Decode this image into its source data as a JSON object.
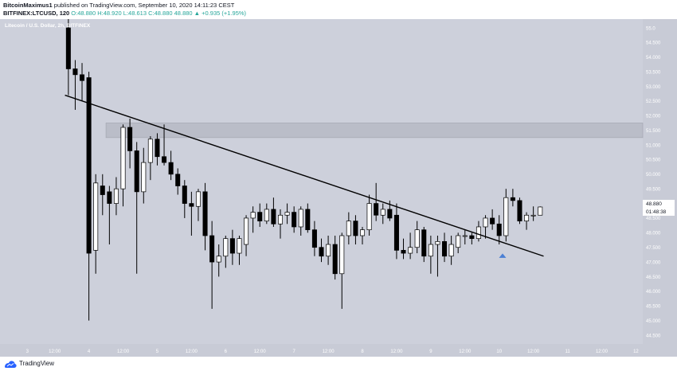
{
  "publish": {
    "author": "BitcoinMaximus1",
    "text": "published on TradingView.com, September 10, 2020 14:11:23 CEST"
  },
  "symbol": {
    "name": "BITFINEX:LTCUSD, 120",
    "open": "O:48.880",
    "high": "H:48.920",
    "low": "L:48.613",
    "close": "C:48.880",
    "change": "48.880 ▲ +0.935 (+1.95%)"
  },
  "chart_title": "Litecoin / U.S. Dollar, 2h, BITFINEX",
  "price_badge": "48.880",
  "timer_badge": "01:48:38",
  "footer": {
    "brand": "TradingView"
  },
  "colors": {
    "background": "#cdd0db",
    "up": "#ffffff",
    "down": "#000000",
    "badge": "#ffffff",
    "arrow": "#4a7fd4",
    "resistance_zone": "#b8bbc6"
  },
  "chart_data": {
    "type": "candlestick",
    "ylim": [
      44.2,
      55.3
    ],
    "xlim": [
      0,
      94
    ],
    "y_ticks": [
      44.5,
      45.0,
      45.5,
      46.0,
      46.5,
      47.0,
      47.5,
      48.0,
      48.5,
      49.0,
      49.5,
      50.0,
      50.5,
      51.0,
      51.5,
      52.0,
      52.5,
      53.0,
      53.5,
      54.0,
      54.5,
      55.0
    ],
    "y_tick_labels": [
      "44.500",
      "45.000",
      "45.500",
      "46.000",
      "46.500",
      "47.000",
      "47.500",
      "48.000",
      "48.500",
      "49.000",
      "49.500",
      "50.000",
      "50.500",
      "51.000",
      "51.500",
      "52.000",
      "52.500",
      "53.000",
      "53.500",
      "54.000",
      "54.500",
      "55.0"
    ],
    "x_ticks": [
      {
        "label": "3",
        "x": 4
      },
      {
        "label": "12:00",
        "x": 8
      },
      {
        "label": "4",
        "x": 13
      },
      {
        "label": "12:00",
        "x": 18
      },
      {
        "label": "5",
        "x": 23
      },
      {
        "label": "12:00",
        "x": 28
      },
      {
        "label": "6",
        "x": 33
      },
      {
        "label": "12:00",
        "x": 38
      },
      {
        "label": "7",
        "x": 43
      },
      {
        "label": "12:00",
        "x": 48
      },
      {
        "label": "8",
        "x": 53
      },
      {
        "label": "12:00",
        "x": 58
      },
      {
        "label": "9",
        "x": 63
      },
      {
        "label": "12:00",
        "x": 68
      },
      {
        "label": "10",
        "x": 73
      },
      {
        "label": "12:00",
        "x": 78
      },
      {
        "label": "11",
        "x": 83
      },
      {
        "label": "12:00",
        "x": 88
      },
      {
        "label": "12",
        "x": 93
      }
    ],
    "candles": [
      {
        "x": 10,
        "o": 55.0,
        "h": 55.3,
        "l": 52.7,
        "c": 53.6
      },
      {
        "x": 11,
        "o": 53.6,
        "h": 53.9,
        "l": 52.2,
        "c": 53.4
      },
      {
        "x": 12,
        "o": 53.4,
        "h": 53.8,
        "l": 52.5,
        "c": 53.2
      },
      {
        "x": 13,
        "o": 53.3,
        "h": 53.5,
        "l": 45.0,
        "c": 47.3
      },
      {
        "x": 14,
        "o": 47.4,
        "h": 50.0,
        "l": 46.6,
        "c": 49.7
      },
      {
        "x": 15,
        "o": 49.6,
        "h": 50.0,
        "l": 48.6,
        "c": 49.3
      },
      {
        "x": 16,
        "o": 49.4,
        "h": 49.6,
        "l": 47.6,
        "c": 49.0
      },
      {
        "x": 17,
        "o": 49.0,
        "h": 49.9,
        "l": 48.6,
        "c": 49.5
      },
      {
        "x": 18,
        "o": 49.5,
        "h": 51.7,
        "l": 48.9,
        "c": 51.6
      },
      {
        "x": 19,
        "o": 51.6,
        "h": 51.9,
        "l": 50.2,
        "c": 50.8
      },
      {
        "x": 20,
        "o": 50.8,
        "h": 51.1,
        "l": 46.6,
        "c": 49.4
      },
      {
        "x": 21,
        "o": 49.4,
        "h": 50.9,
        "l": 49.0,
        "c": 50.4
      },
      {
        "x": 22,
        "o": 50.4,
        "h": 51.3,
        "l": 49.8,
        "c": 51.2
      },
      {
        "x": 23,
        "o": 51.2,
        "h": 51.4,
        "l": 50.3,
        "c": 50.6
      },
      {
        "x": 24,
        "o": 50.6,
        "h": 51.7,
        "l": 50.3,
        "c": 50.4
      },
      {
        "x": 25,
        "o": 50.4,
        "h": 50.8,
        "l": 49.8,
        "c": 50.0
      },
      {
        "x": 26,
        "o": 50.0,
        "h": 50.2,
        "l": 49.3,
        "c": 49.6
      },
      {
        "x": 27,
        "o": 49.6,
        "h": 49.8,
        "l": 48.5,
        "c": 49.0
      },
      {
        "x": 28,
        "o": 49.0,
        "h": 49.4,
        "l": 47.9,
        "c": 48.9
      },
      {
        "x": 29,
        "o": 48.9,
        "h": 49.5,
        "l": 48.4,
        "c": 49.4
      },
      {
        "x": 30,
        "o": 49.4,
        "h": 49.7,
        "l": 47.4,
        "c": 47.9
      },
      {
        "x": 31,
        "o": 47.9,
        "h": 48.4,
        "l": 45.4,
        "c": 47.0
      },
      {
        "x": 32,
        "o": 47.0,
        "h": 47.6,
        "l": 46.5,
        "c": 47.2
      },
      {
        "x": 33,
        "o": 47.2,
        "h": 47.9,
        "l": 46.8,
        "c": 47.8
      },
      {
        "x": 34,
        "o": 47.8,
        "h": 48.1,
        "l": 46.9,
        "c": 47.3
      },
      {
        "x": 35,
        "o": 47.3,
        "h": 47.9,
        "l": 46.9,
        "c": 47.8
      },
      {
        "x": 36,
        "o": 47.6,
        "h": 48.6,
        "l": 47.2,
        "c": 48.5
      },
      {
        "x": 37,
        "o": 48.5,
        "h": 48.9,
        "l": 48.0,
        "c": 48.7
      },
      {
        "x": 38,
        "o": 48.7,
        "h": 49.0,
        "l": 48.2,
        "c": 48.4
      },
      {
        "x": 39,
        "o": 48.4,
        "h": 49.0,
        "l": 48.3,
        "c": 48.8
      },
      {
        "x": 40,
        "o": 48.8,
        "h": 49.2,
        "l": 48.2,
        "c": 48.3
      },
      {
        "x": 41,
        "o": 48.3,
        "h": 48.8,
        "l": 47.8,
        "c": 48.6
      },
      {
        "x": 42,
        "o": 48.6,
        "h": 49.0,
        "l": 48.3,
        "c": 48.7
      },
      {
        "x": 43,
        "o": 48.7,
        "h": 48.9,
        "l": 48.0,
        "c": 48.2
      },
      {
        "x": 44,
        "o": 48.2,
        "h": 48.9,
        "l": 47.9,
        "c": 48.8
      },
      {
        "x": 45,
        "o": 48.8,
        "h": 49.0,
        "l": 48.0,
        "c": 48.1
      },
      {
        "x": 46,
        "o": 48.1,
        "h": 48.4,
        "l": 47.2,
        "c": 47.5
      },
      {
        "x": 47,
        "o": 47.5,
        "h": 47.8,
        "l": 47.0,
        "c": 47.2
      },
      {
        "x": 48,
        "o": 47.2,
        "h": 47.9,
        "l": 46.9,
        "c": 47.6
      },
      {
        "x": 49,
        "o": 47.6,
        "h": 47.9,
        "l": 46.4,
        "c": 46.6
      },
      {
        "x": 50,
        "o": 46.6,
        "h": 48.0,
        "l": 45.4,
        "c": 47.9
      },
      {
        "x": 51,
        "o": 47.9,
        "h": 48.7,
        "l": 47.6,
        "c": 48.4
      },
      {
        "x": 52,
        "o": 48.4,
        "h": 48.6,
        "l": 47.6,
        "c": 47.9
      },
      {
        "x": 53,
        "o": 47.9,
        "h": 48.2,
        "l": 47.6,
        "c": 48.1
      },
      {
        "x": 54,
        "o": 48.1,
        "h": 49.3,
        "l": 47.9,
        "c": 49.0
      },
      {
        "x": 55,
        "o": 49.0,
        "h": 49.7,
        "l": 48.4,
        "c": 48.6
      },
      {
        "x": 56,
        "o": 48.6,
        "h": 49.0,
        "l": 48.3,
        "c": 48.8
      },
      {
        "x": 57,
        "o": 48.8,
        "h": 49.1,
        "l": 48.4,
        "c": 48.5
      },
      {
        "x": 58,
        "o": 48.6,
        "h": 49.0,
        "l": 47.1,
        "c": 47.4
      },
      {
        "x": 59,
        "o": 47.4,
        "h": 47.8,
        "l": 47.1,
        "c": 47.3
      },
      {
        "x": 60,
        "o": 47.3,
        "h": 48.0,
        "l": 47.1,
        "c": 47.5
      },
      {
        "x": 61,
        "o": 47.5,
        "h": 48.4,
        "l": 47.3,
        "c": 48.1
      },
      {
        "x": 62,
        "o": 48.1,
        "h": 48.2,
        "l": 47.0,
        "c": 47.2
      },
      {
        "x": 63,
        "o": 47.2,
        "h": 47.9,
        "l": 46.6,
        "c": 47.6
      },
      {
        "x": 64,
        "o": 47.6,
        "h": 47.9,
        "l": 46.5,
        "c": 47.7
      },
      {
        "x": 65,
        "o": 47.7,
        "h": 48.0,
        "l": 47.0,
        "c": 47.2
      },
      {
        "x": 66,
        "o": 47.2,
        "h": 47.9,
        "l": 46.9,
        "c": 47.6
      },
      {
        "x": 67,
        "o": 47.5,
        "h": 48.0,
        "l": 47.3,
        "c": 47.9
      },
      {
        "x": 68,
        "o": 47.9,
        "h": 48.1,
        "l": 47.6,
        "c": 47.9
      },
      {
        "x": 69,
        "o": 47.9,
        "h": 48.0,
        "l": 47.6,
        "c": 47.8
      },
      {
        "x": 70,
        "o": 47.8,
        "h": 48.4,
        "l": 47.7,
        "c": 48.2
      },
      {
        "x": 71,
        "o": 48.2,
        "h": 48.6,
        "l": 47.8,
        "c": 48.5
      },
      {
        "x": 72,
        "o": 48.5,
        "h": 48.8,
        "l": 48.1,
        "c": 48.3
      },
      {
        "x": 73,
        "o": 48.3,
        "h": 48.6,
        "l": 47.6,
        "c": 47.9
      },
      {
        "x": 74,
        "o": 47.9,
        "h": 49.5,
        "l": 47.7,
        "c": 49.2
      },
      {
        "x": 75,
        "o": 49.2,
        "h": 49.5,
        "l": 48.9,
        "c": 49.1
      },
      {
        "x": 76,
        "o": 49.1,
        "h": 49.2,
        "l": 48.3,
        "c": 48.4
      },
      {
        "x": 77,
        "o": 48.4,
        "h": 48.7,
        "l": 48.1,
        "c": 48.6
      },
      {
        "x": 78,
        "o": 48.6,
        "h": 48.9,
        "l": 48.4,
        "c": 48.6
      },
      {
        "x": 79,
        "o": 48.6,
        "h": 48.9,
        "l": 48.6,
        "c": 48.88
      }
    ],
    "trendline": {
      "x1": 9.5,
      "y1": 52.7,
      "x2": 79.5,
      "y2": 47.2
    },
    "resistance_zone": {
      "x1": 15.5,
      "x2": 94,
      "y_low": 51.25,
      "y_high": 51.75
    },
    "arrow": {
      "x": 73.5,
      "y": 47.25
    },
    "last_price": 48.88
  }
}
